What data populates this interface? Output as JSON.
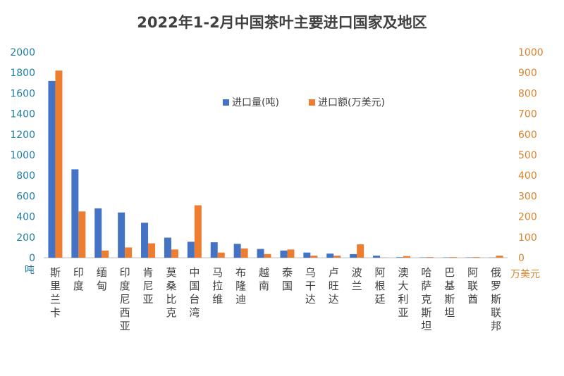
{
  "chart_data": {
    "type": "bar",
    "title": "2022年1-2月中国茶叶主要进口国家及地区",
    "categories": [
      "斯里兰卡",
      "印度",
      "缅甸",
      "印度尼西亚",
      "肯尼亚",
      "莫桑比克",
      "中国台湾",
      "马拉维",
      "布隆迪",
      "越南",
      "泰国",
      "乌干达",
      "卢旺达",
      "波兰",
      "阿根廷",
      "澳大利亚",
      "哈萨克斯坦",
      "巴基斯坦",
      "阿联酋",
      "俄罗斯联邦"
    ],
    "series": [
      {
        "name": "进口量(吨)",
        "axis": "left",
        "color": "#4472C4",
        "values": [
          1720,
          860,
          480,
          440,
          340,
          195,
          155,
          150,
          135,
          85,
          70,
          50,
          40,
          35,
          20,
          5,
          3,
          3,
          3,
          2
        ]
      },
      {
        "name": "进口额(万美元)",
        "axis": "right",
        "color": "#ED7D31",
        "values": [
          910,
          225,
          35,
          50,
          70,
          40,
          255,
          25,
          45,
          18,
          40,
          10,
          10,
          65,
          1,
          8,
          3,
          3,
          3,
          10
        ]
      }
    ],
    "y_left": {
      "range": [
        0,
        2000
      ],
      "ticks": [
        "2000",
        "1800",
        "1600",
        "1400",
        "1200",
        "1000",
        "800",
        "600",
        "400",
        "200",
        "0"
      ],
      "unit": "吨"
    },
    "y_right": {
      "range": [
        0,
        1000
      ],
      "ticks": [
        "1000",
        "900",
        "800",
        "700",
        "600",
        "500",
        "400",
        "300",
        "200",
        "100",
        "0"
      ],
      "unit": "万美元"
    },
    "grid": false,
    "legend": "top-center"
  }
}
